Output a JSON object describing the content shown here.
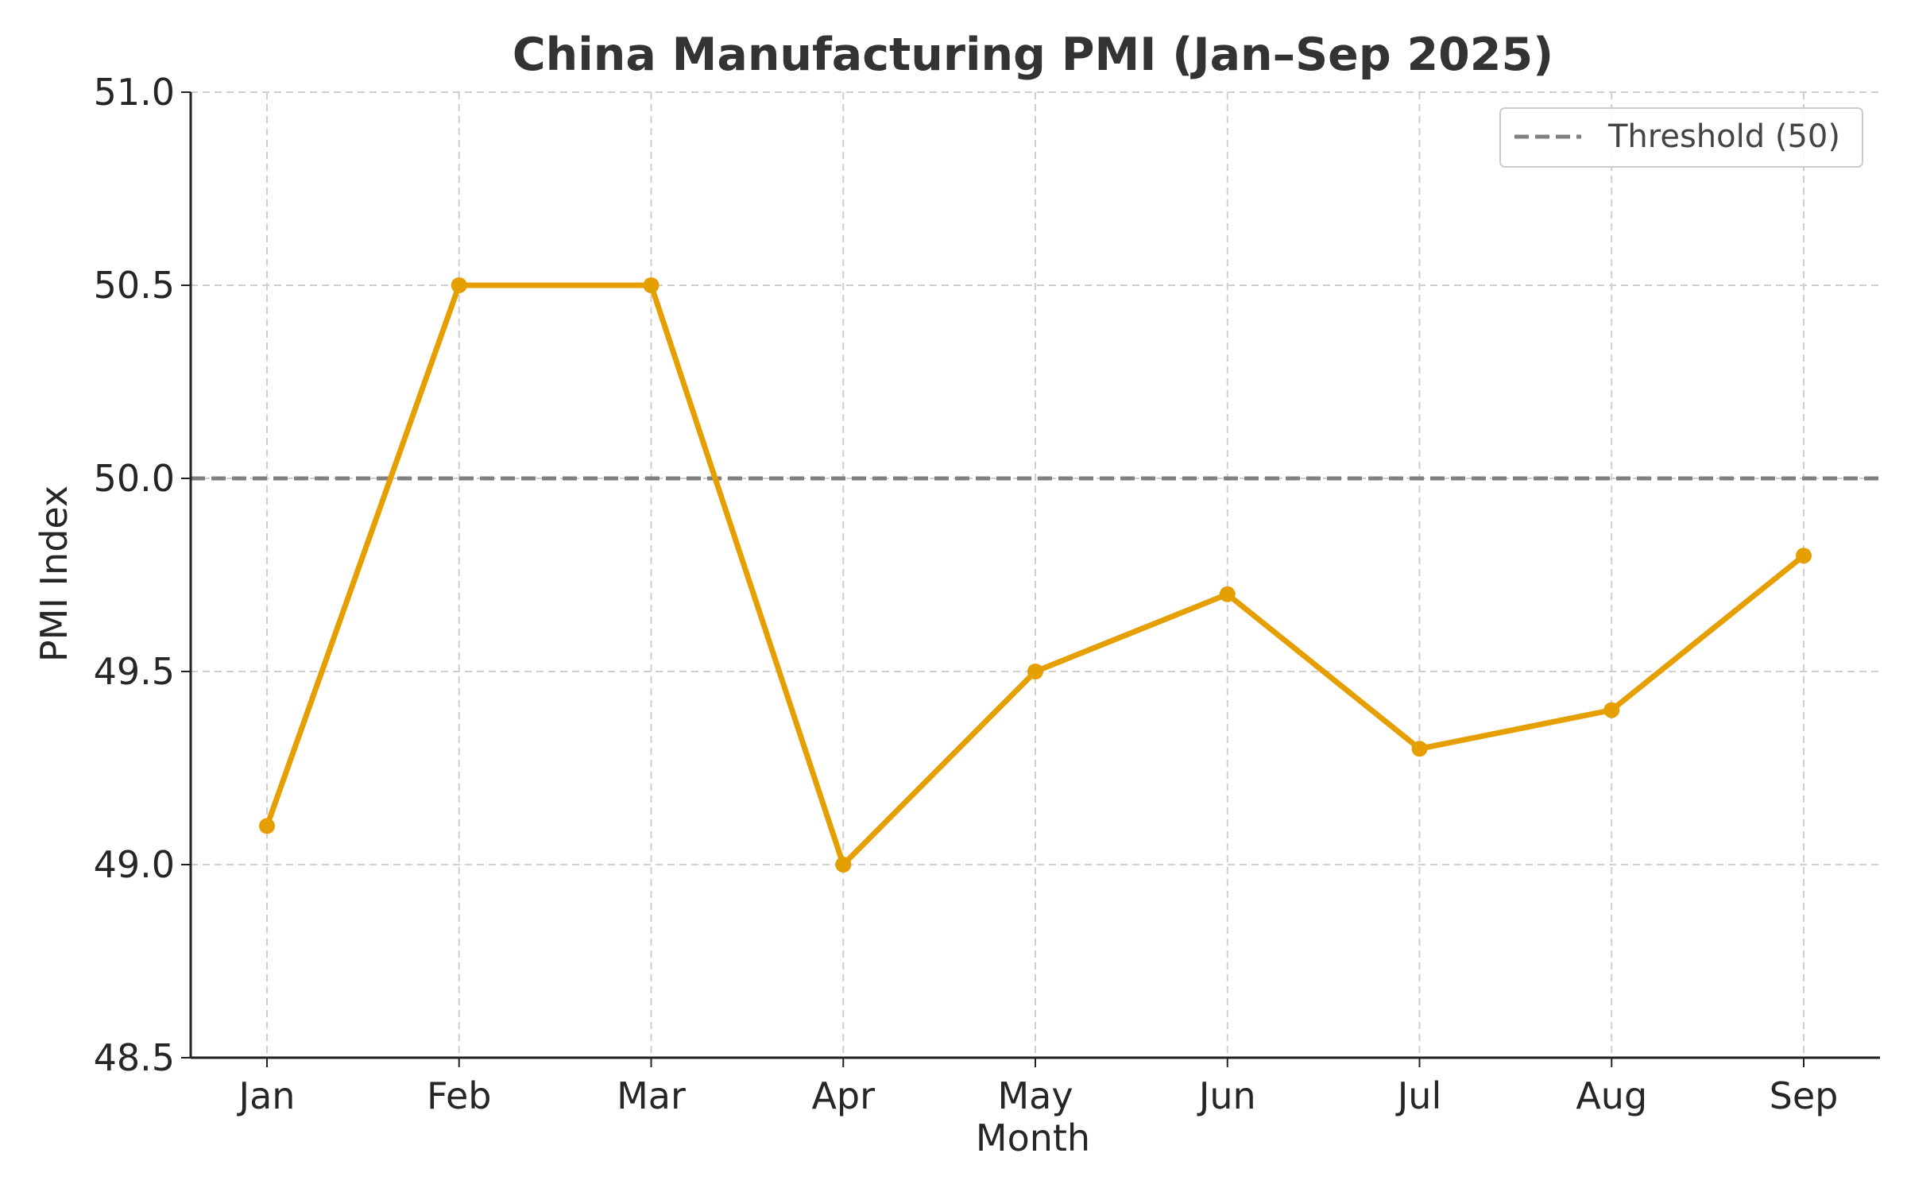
{
  "chart_data": {
    "type": "line",
    "title": "China Manufacturing PMI (Jan–Sep 2025)",
    "xlabel": "Month",
    "ylabel": "PMI Index",
    "categories": [
      "Jan",
      "Feb",
      "Mar",
      "Apr",
      "May",
      "Jun",
      "Jul",
      "Aug",
      "Sep"
    ],
    "series": [
      {
        "values": [
          49.1,
          50.5,
          50.5,
          49.0,
          49.5,
          49.7,
          49.3,
          49.4,
          49.8
        ],
        "color": "#E69F00",
        "marker": "circle"
      }
    ],
    "reference_lines": [
      {
        "name": "Threshold (50)",
        "y": 50,
        "style": "dashed",
        "color": "#808080"
      }
    ],
    "ylim": [
      48.5,
      51.0
    ],
    "yticks": [
      48.5,
      49.0,
      49.5,
      50.0,
      50.5,
      51.0
    ],
    "ytick_labels": [
      "48.5",
      "49.0",
      "49.5",
      "50.0",
      "50.5",
      "51.0"
    ],
    "grid": true,
    "grid_style": "dashed",
    "legend_position": "top-right"
  }
}
